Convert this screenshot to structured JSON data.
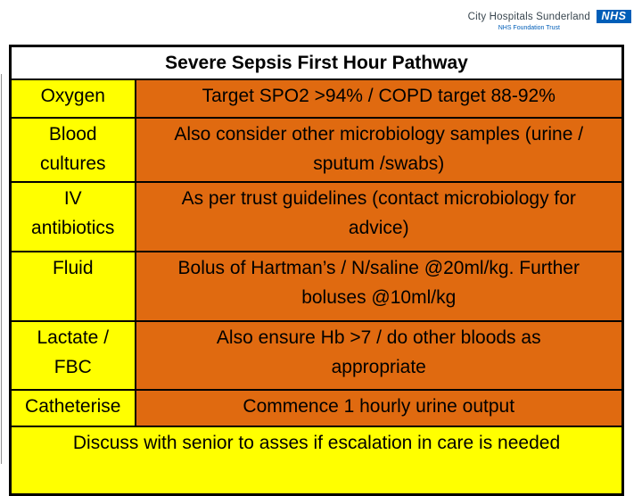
{
  "logo": {
    "org_name": "City Hospitals Sunderland",
    "nhs_text": "NHS",
    "tagline": "NHS Foundation Trust",
    "nhs_blue": "#005EB8"
  },
  "table": {
    "title": "Severe Sepsis First Hour Pathway",
    "rows": [
      {
        "label": "Oxygen",
        "detail": "Target SPO2 >94% / COPD target 88-92%"
      },
      {
        "label": [
          "Blood",
          "cultures"
        ],
        "detail": [
          "Also consider other microbiology samples (urine /",
          "sputum /swabs)"
        ]
      },
      {
        "label": [
          "IV",
          "antibiotics"
        ],
        "detail": [
          "As per trust guidelines (contact microbiology for",
          "advice)"
        ]
      },
      {
        "label": "Fluid",
        "detail": [
          "Bolus of Hartman’s / N/saline @20ml/kg.  Further",
          "boluses @10ml/kg"
        ]
      },
      {
        "label": [
          "Lactate /",
          "FBC"
        ],
        "detail": [
          "Also ensure Hb >7 / do other bloods as",
          "appropriate"
        ]
      },
      {
        "label": "Catheterise",
        "detail": "Commence 1 hourly urine output"
      }
    ],
    "footer": "Discuss with senior to asses if escalation in care is needed",
    "colors": {
      "label_bg": "#FFFF00",
      "detail_bg": "#E06A10",
      "border": "#000000",
      "title_bg": "#FFFFFF"
    }
  }
}
